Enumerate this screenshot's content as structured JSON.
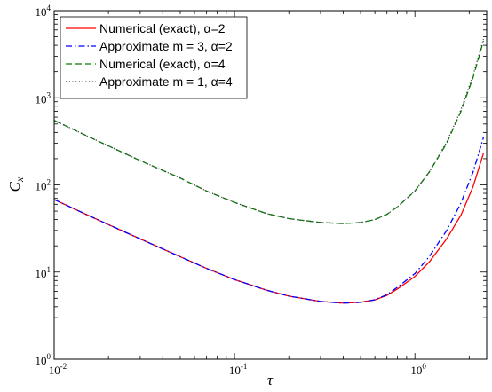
{
  "chart_data": {
    "type": "line",
    "xlabel": "τ",
    "ylabel": "C",
    "ylabel_subscript": "x",
    "xscale": "log",
    "yscale": "log",
    "xlim": [
      0.01,
      2.5
    ],
    "ylim": [
      1,
      10000
    ],
    "grid": false,
    "legend_position": "top-left",
    "x_ticks": [
      {
        "value": 0.01,
        "base": "10",
        "exp": "-2"
      },
      {
        "value": 0.1,
        "base": "10",
        "exp": "-1"
      },
      {
        "value": 1,
        "base": "10",
        "exp": "0"
      }
    ],
    "y_ticks": [
      {
        "value": 1,
        "base": "10",
        "exp": "0"
      },
      {
        "value": 10,
        "base": "10",
        "exp": "1"
      },
      {
        "value": 100,
        "base": "10",
        "exp": "2"
      },
      {
        "value": 1000,
        "base": "10",
        "exp": "3"
      },
      {
        "value": 10000,
        "base": "10",
        "exp": "4"
      }
    ],
    "series": [
      {
        "name": "Numerical (exact), α=2",
        "color": "#ff0000",
        "style": "solid",
        "x": [
          0.01,
          0.015,
          0.02,
          0.03,
          0.05,
          0.07,
          0.1,
          0.15,
          0.2,
          0.3,
          0.4,
          0.5,
          0.6,
          0.7,
          0.8,
          1.0,
          1.2,
          1.5,
          1.8,
          2.1,
          2.4
        ],
        "y": [
          68,
          46,
          35,
          24,
          15,
          11,
          8.2,
          6.2,
          5.3,
          4.6,
          4.4,
          4.5,
          4.8,
          5.4,
          6.4,
          8.9,
          13,
          24,
          45,
          95,
          230
        ]
      },
      {
        "name": "Approximate m = 3, α=2",
        "color": "#0000ff",
        "style": "dashdot",
        "x": [
          0.01,
          0.015,
          0.02,
          0.03,
          0.05,
          0.07,
          0.1,
          0.15,
          0.2,
          0.3,
          0.4,
          0.5,
          0.6,
          0.7,
          0.8,
          1.0,
          1.2,
          1.5,
          1.8,
          2.1,
          2.4
        ],
        "y": [
          68,
          46,
          35,
          24,
          15,
          11,
          8.2,
          6.2,
          5.3,
          4.6,
          4.4,
          4.5,
          4.8,
          5.5,
          6.7,
          9.6,
          15,
          30,
          62,
          140,
          350
        ]
      },
      {
        "name": "Numerical (exact), α=4",
        "color": "#008000",
        "style": "dashed",
        "x": [
          0.01,
          0.015,
          0.02,
          0.03,
          0.05,
          0.07,
          0.1,
          0.15,
          0.2,
          0.3,
          0.4,
          0.5,
          0.6,
          0.7,
          0.8,
          1.0,
          1.2,
          1.5,
          1.8,
          2.1,
          2.4
        ],
        "y": [
          550,
          370,
          280,
          190,
          120,
          85,
          63,
          47,
          41,
          37,
          36,
          37,
          40,
          46,
          56,
          85,
          140,
          300,
          700,
          1700,
          4500
        ]
      },
      {
        "name": "Approximate m = 1, α=4",
        "color": "#444444",
        "style": "dotted",
        "x": [
          0.01,
          0.015,
          0.02,
          0.03,
          0.05,
          0.07,
          0.1,
          0.15,
          0.2,
          0.3,
          0.4,
          0.5,
          0.6,
          0.7,
          0.8,
          1.0,
          1.2,
          1.5,
          1.8,
          2.1,
          2.4
        ],
        "y": [
          550,
          370,
          280,
          190,
          120,
          85,
          63,
          47,
          41,
          37,
          36,
          37,
          40,
          46,
          56,
          85,
          140,
          310,
          730,
          1800,
          4700
        ]
      }
    ]
  }
}
